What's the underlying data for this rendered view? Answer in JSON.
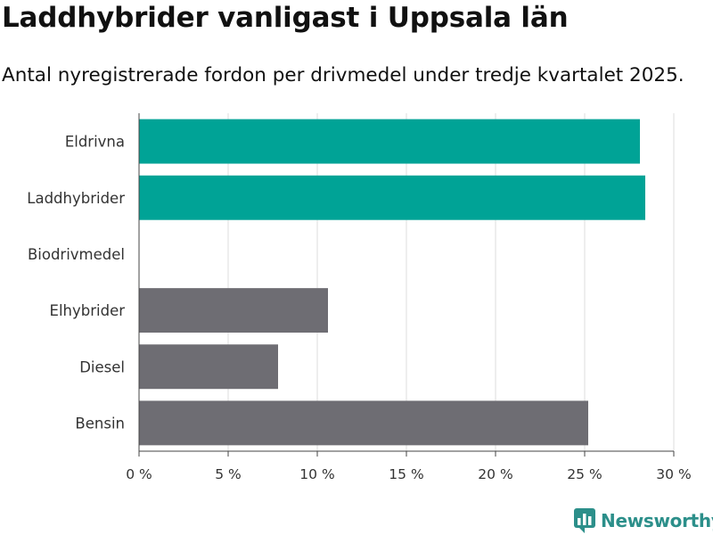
{
  "header": {
    "title": "Laddhybrider vanligast i Uppsala län",
    "subtitle": "Antal nyregistrerade fordon per drivmedel under tredje kvartalet 2025."
  },
  "brand": {
    "name": "Newsworthy"
  },
  "colors": {
    "highlight": "#00a396",
    "neutral": "#6e6d73",
    "grid": "#dddddd",
    "axis": "#444444",
    "text": "#333333"
  },
  "chart_data": {
    "type": "bar",
    "orientation": "horizontal",
    "title": "Laddhybrider vanligast i Uppsala län",
    "subtitle": "Antal nyregistrerade fordon per drivmedel under tredje kvartalet 2025.",
    "xlabel": "",
    "ylabel": "",
    "xlim": [
      0,
      30
    ],
    "ticks": [
      0,
      5,
      10,
      15,
      20,
      25,
      30
    ],
    "tick_labels": [
      "0 %",
      "5 %",
      "10 %",
      "15 %",
      "20 %",
      "25 %",
      "30 %"
    ],
    "grid": true,
    "categories": [
      "Eldrivna",
      "Laddhybrider",
      "Biodrivmedel",
      "Elhybrider",
      "Diesel",
      "Bensin"
    ],
    "values": [
      28.1,
      28.4,
      0,
      10.6,
      7.8,
      25.2
    ],
    "highlight": [
      true,
      true,
      false,
      false,
      false,
      false
    ]
  }
}
